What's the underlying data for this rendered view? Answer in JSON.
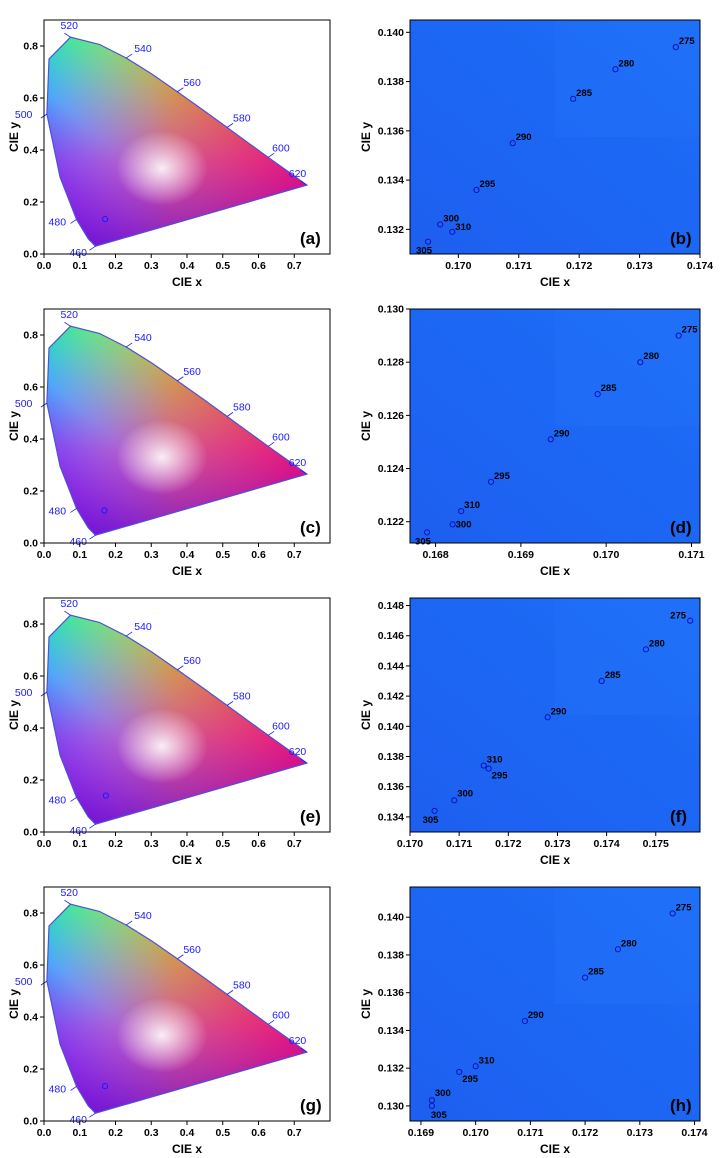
{
  "figure": {
    "colors": {
      "zoom_background": "#1c64f0",
      "locus_stroke": "#5050d8",
      "wavelength_label": "#1a1aff",
      "point_stroke": "#1a1aff",
      "text": "#000000"
    }
  },
  "chart_data": [
    {
      "type": "scatter",
      "panel_label": "(a)",
      "xlabel": "CIE x",
      "ylabel": "CIE y",
      "xlim": [
        0.0,
        0.8
      ],
      "ylim": [
        0.0,
        0.9
      ],
      "x_ticks": [
        "0.0",
        "0.1",
        "0.2",
        "0.3",
        "0.4",
        "0.5",
        "0.6",
        "0.7"
      ],
      "y_ticks": [
        "0.0",
        "0.2",
        "0.4",
        "0.6",
        "0.8"
      ],
      "wavelength_labels": [
        "460",
        "480",
        "500",
        "520",
        "540",
        "560",
        "580",
        "600",
        "620"
      ],
      "points": [
        {
          "x": 0.171,
          "y": 0.134
        }
      ]
    },
    {
      "type": "scatter",
      "panel_label": "(b)",
      "xlabel": "CIE x",
      "ylabel": "CIE y",
      "xlim": [
        0.1692,
        0.174
      ],
      "ylim": [
        0.131,
        0.1405
      ],
      "x_ticks": [
        "0.170",
        "0.171",
        "0.172",
        "0.173",
        "0.174"
      ],
      "y_ticks": [
        "0.132",
        "0.134",
        "0.136",
        "0.138",
        "0.140"
      ],
      "points": [
        {
          "label": "275",
          "x": 0.1736,
          "y": 0.1394
        },
        {
          "label": "280",
          "x": 0.1726,
          "y": 0.1385
        },
        {
          "label": "285",
          "x": 0.1719,
          "y": 0.1373
        },
        {
          "label": "290",
          "x": 0.1709,
          "y": 0.1355
        },
        {
          "label": "295",
          "x": 0.1703,
          "y": 0.1336
        },
        {
          "label": "300",
          "x": 0.1697,
          "y": 0.1322
        },
        {
          "label": "310",
          "x": 0.1699,
          "y": 0.1319
        },
        {
          "label": "305",
          "x": 0.1695,
          "y": 0.1315
        }
      ]
    },
    {
      "type": "scatter",
      "panel_label": "(c)",
      "xlabel": "CIE x",
      "ylabel": "CIE y",
      "xlim": [
        0.0,
        0.8
      ],
      "ylim": [
        0.0,
        0.9
      ],
      "x_ticks": [
        "0.0",
        "0.1",
        "0.2",
        "0.3",
        "0.4",
        "0.5",
        "0.6",
        "0.7"
      ],
      "y_ticks": [
        "0.0",
        "0.2",
        "0.4",
        "0.6",
        "0.8"
      ],
      "wavelength_labels": [
        "460",
        "480",
        "500",
        "520",
        "540",
        "560",
        "580",
        "600",
        "620"
      ],
      "points": [
        {
          "x": 0.169,
          "y": 0.125
        }
      ]
    },
    {
      "type": "scatter",
      "panel_label": "(d)",
      "xlabel": "CIE x",
      "ylabel": "CIE y",
      "xlim": [
        0.1677,
        0.1711
      ],
      "ylim": [
        0.1212,
        0.13
      ],
      "x_ticks": [
        "0.168",
        "0.169",
        "0.170",
        "0.171"
      ],
      "y_ticks": [
        "0.122",
        "0.124",
        "0.126",
        "0.128",
        "0.130"
      ],
      "points": [
        {
          "label": "275",
          "x": 0.17085,
          "y": 0.129
        },
        {
          "label": "280",
          "x": 0.1704,
          "y": 0.128
        },
        {
          "label": "285",
          "x": 0.1699,
          "y": 0.1268
        },
        {
          "label": "290",
          "x": 0.16935,
          "y": 0.1251
        },
        {
          "label": "295",
          "x": 0.16865,
          "y": 0.1235
        },
        {
          "label": "310",
          "x": 0.1683,
          "y": 0.1224
        },
        {
          "label": "300",
          "x": 0.1682,
          "y": 0.1219
        },
        {
          "label": "305",
          "x": 0.1679,
          "y": 0.1216
        }
      ]
    },
    {
      "type": "scatter",
      "panel_label": "(e)",
      "xlabel": "CIE x",
      "ylabel": "CIE y",
      "xlim": [
        0.0,
        0.8
      ],
      "ylim": [
        0.0,
        0.9
      ],
      "x_ticks": [
        "0.0",
        "0.1",
        "0.2",
        "0.3",
        "0.4",
        "0.5",
        "0.6",
        "0.7"
      ],
      "y_ticks": [
        "0.0",
        "0.2",
        "0.4",
        "0.6",
        "0.8"
      ],
      "wavelength_labels": [
        "460",
        "480",
        "500",
        "520",
        "540",
        "560",
        "580",
        "600",
        "620"
      ],
      "points": [
        {
          "x": 0.173,
          "y": 0.14
        }
      ]
    },
    {
      "type": "scatter",
      "panel_label": "(f)",
      "xlabel": "CIE x",
      "ylabel": "CIE y",
      "xlim": [
        0.17,
        0.1759
      ],
      "ylim": [
        0.133,
        0.1485
      ],
      "x_ticks": [
        "0.170",
        "0.171",
        "0.172",
        "0.173",
        "0.174",
        "0.175"
      ],
      "y_ticks": [
        "0.134",
        "0.136",
        "0.138",
        "0.140",
        "0.142",
        "0.144",
        "0.146",
        "0.148"
      ],
      "points": [
        {
          "label": "275",
          "x": 0.1757,
          "y": 0.147
        },
        {
          "label": "280",
          "x": 0.1748,
          "y": 0.1451
        },
        {
          "label": "285",
          "x": 0.1739,
          "y": 0.143
        },
        {
          "label": "290",
          "x": 0.1728,
          "y": 0.1406
        },
        {
          "label": "310",
          "x": 0.1715,
          "y": 0.1374
        },
        {
          "label": "295",
          "x": 0.1716,
          "y": 0.1372
        },
        {
          "label": "300",
          "x": 0.1709,
          "y": 0.1351
        },
        {
          "label": "305",
          "x": 0.1705,
          "y": 0.1344
        }
      ]
    },
    {
      "type": "scatter",
      "panel_label": "(g)",
      "xlabel": "CIE x",
      "ylabel": "CIE y",
      "xlim": [
        0.0,
        0.8
      ],
      "ylim": [
        0.0,
        0.9
      ],
      "x_ticks": [
        "0.0",
        "0.1",
        "0.2",
        "0.3",
        "0.4",
        "0.5",
        "0.6",
        "0.7"
      ],
      "y_ticks": [
        "0.0",
        "0.2",
        "0.4",
        "0.6",
        "0.8"
      ],
      "wavelength_labels": [
        "460",
        "480",
        "500",
        "520",
        "540",
        "560",
        "580",
        "600",
        "620"
      ],
      "points": [
        {
          "x": 0.171,
          "y": 0.134
        }
      ]
    },
    {
      "type": "scatter",
      "panel_label": "(h)",
      "xlabel": "CIE x",
      "ylabel": "CIE y",
      "xlim": [
        0.1688,
        0.1741
      ],
      "ylim": [
        0.1292,
        0.1416
      ],
      "x_ticks": [
        "0.169",
        "0.170",
        "0.171",
        "0.172",
        "0.173",
        "0.174"
      ],
      "y_ticks": [
        "0.130",
        "0.132",
        "0.134",
        "0.136",
        "0.138",
        "0.140"
      ],
      "points": [
        {
          "label": "275",
          "x": 0.1736,
          "y": 0.1402
        },
        {
          "label": "280",
          "x": 0.1726,
          "y": 0.1383
        },
        {
          "label": "285",
          "x": 0.172,
          "y": 0.1368
        },
        {
          "label": "290",
          "x": 0.1709,
          "y": 0.1345
        },
        {
          "label": "310",
          "x": 0.17,
          "y": 0.1321
        },
        {
          "label": "295",
          "x": 0.1697,
          "y": 0.1318
        },
        {
          "label": "300",
          "x": 0.1692,
          "y": 0.1303
        },
        {
          "label": "305",
          "x": 0.1692,
          "y": 0.13
        }
      ]
    }
  ]
}
